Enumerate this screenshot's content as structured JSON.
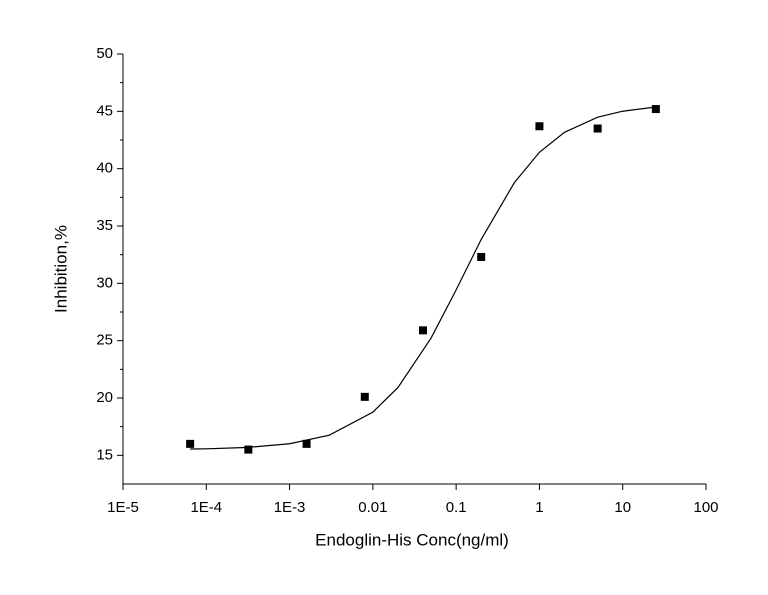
{
  "chart_data": {
    "type": "scatter",
    "x_label": "Endoglin-His Conc(ng/ml)",
    "y_label": "Inhibition,%",
    "xscale": "log",
    "xlim": [
      1e-05,
      100
    ],
    "ylim": [
      12.5,
      50
    ],
    "xticks": [
      {
        "value": 1e-05,
        "label": "1E-5"
      },
      {
        "value": 0.0001,
        "label": "1E-4"
      },
      {
        "value": 0.001,
        "label": "1E-3"
      },
      0.01,
      0.1,
      1,
      10,
      100
    ],
    "yticks": [
      15,
      20,
      25,
      30,
      35,
      40,
      45,
      50
    ],
    "series": [
      {
        "marker": "square",
        "color": "#000000",
        "x": [
          6.4e-05,
          0.00032,
          0.0016,
          0.008,
          0.04,
          0.2,
          1,
          5,
          25
        ],
        "values": [
          16.0,
          15.5,
          16.0,
          20.1,
          25.9,
          32.3,
          43.7,
          43.5,
          45.2
        ]
      },
      {
        "marker": "line",
        "color": "#000000",
        "x": [
          6.4e-05,
          0.0001,
          0.0003,
          0.001,
          0.003,
          0.01,
          0.02,
          0.05,
          0.1,
          0.2,
          0.5,
          1,
          2,
          5,
          10,
          25
        ],
        "values": [
          15.55,
          15.57,
          15.68,
          16.01,
          16.76,
          18.77,
          20.91,
          25.23,
          29.43,
          33.83,
          38.78,
          41.43,
          43.17,
          44.49,
          45.01,
          45.38
        ]
      }
    ]
  }
}
